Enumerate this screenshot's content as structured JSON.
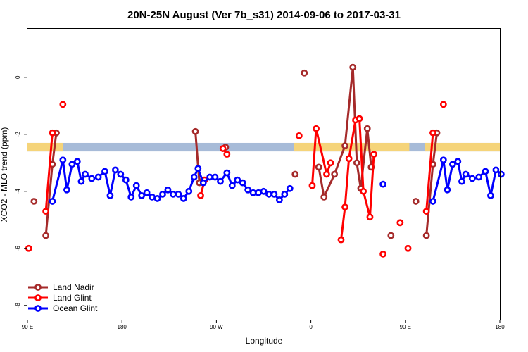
{
  "chart_data": {
    "type": "line",
    "title": "20N-25N August (Ver 7b_s31)   2014-09-06 to 2017-03-31",
    "xlabel": "Longitude",
    "ylabel": "XCO2 - MLO trend (ppm)",
    "xlim": [
      0,
      360
    ],
    "ylim": [
      -8.5,
      1.7
    ],
    "x_ticks": [
      {
        "x": 0,
        "label": "90 E"
      },
      {
        "x": 72,
        "label": "180"
      },
      {
        "x": 144,
        "label": "90 W"
      },
      {
        "x": 216,
        "label": "0"
      },
      {
        "x": 288,
        "label": "90 E"
      },
      {
        "x": 360,
        "label": "180"
      }
    ],
    "y_ticks": [
      {
        "y": 0,
        "label": "0"
      },
      {
        "y": -2,
        "label": "-2"
      },
      {
        "y": -4,
        "label": "-4"
      },
      {
        "y": -6,
        "label": "-6"
      },
      {
        "y": -8,
        "label": "-8"
      }
    ],
    "surface_band": {
      "y_top": -2.3,
      "y_bottom": -2.6,
      "land_color": "#F5D47A",
      "ocean_color": "#A7BBD8",
      "land_segments": [
        [
          0,
          27
        ],
        [
          203,
          291
        ],
        [
          303,
          360
        ]
      ]
    },
    "series": [
      {
        "name": "Land Nadir",
        "color": "#A52A2A",
        "segments": [
          [
            [
              5,
              -4.35
            ]
          ],
          [
            [
              14,
              -5.55
            ],
            [
              19,
              -3.05
            ],
            [
              22,
              -1.95
            ]
          ],
          [
            [
              128,
              -1.9
            ],
            [
              131,
              -3.7
            ],
            [
              134,
              -3.6
            ]
          ],
          [
            [
              151,
              -2.45
            ]
          ],
          [
            [
              204,
              -3.4
            ]
          ],
          [
            [
              211,
              0.15
            ]
          ],
          [
            [
              222,
              -3.15
            ],
            [
              226,
              -4.2
            ],
            [
              234,
              -3.4
            ],
            [
              242,
              -2.4
            ],
            [
              248,
              0.35
            ],
            [
              251,
              -3.0
            ],
            [
              254,
              -3.9
            ],
            [
              259,
              -1.8
            ],
            [
              262,
              -3.15
            ]
          ],
          [
            [
              277,
              -5.55
            ]
          ],
          [
            [
              296,
              -4.35
            ]
          ],
          [
            [
              304,
              -5.55
            ],
            [
              309,
              -3.05
            ],
            [
              312,
              -1.95
            ]
          ]
        ]
      },
      {
        "name": "Land Glint",
        "color": "#FF0000",
        "segments": [
          [
            [
              1,
              -6.0
            ]
          ],
          [
            [
              14,
              -4.7
            ],
            [
              19,
              -1.95
            ]
          ],
          [
            [
              27,
              -0.95
            ]
          ],
          [
            [
              132,
              -4.15
            ],
            [
              135,
              -3.6
            ]
          ],
          [
            [
              149,
              -2.5
            ],
            [
              152,
              -2.7
            ]
          ],
          [
            [
              207,
              -2.05
            ]
          ],
          [
            [
              217,
              -3.8
            ],
            [
              220,
              -1.8
            ],
            [
              228,
              -3.4
            ],
            [
              231,
              -3.0
            ]
          ],
          [
            [
              239,
              -5.7
            ],
            [
              242,
              -4.55
            ],
            [
              245,
              -2.85
            ],
            [
              250,
              -1.5
            ],
            [
              253,
              -1.45
            ],
            [
              256,
              -4.0
            ],
            [
              261,
              -4.9
            ],
            [
              264,
              -2.7
            ]
          ],
          [
            [
              271,
              -6.2
            ]
          ],
          [
            [
              284,
              -5.1
            ]
          ],
          [
            [
              290,
              -6.0
            ]
          ],
          [
            [
              304,
              -4.7
            ],
            [
              309,
              -1.95
            ]
          ],
          [
            [
              317,
              -0.95
            ]
          ]
        ]
      },
      {
        "name": "Ocean Glint",
        "color": "#0000FF",
        "segments": [
          [
            [
              19,
              -4.35
            ],
            [
              27,
              -2.9
            ],
            [
              30,
              -3.95
            ],
            [
              34,
              -3.05
            ],
            [
              38,
              -2.95
            ],
            [
              41,
              -3.65
            ],
            [
              44,
              -3.4
            ],
            [
              49,
              -3.55
            ],
            [
              54,
              -3.5
            ],
            [
              59,
              -3.3
            ],
            [
              63,
              -4.15
            ],
            [
              67,
              -3.25
            ],
            [
              71,
              -3.4
            ],
            [
              75,
              -3.6
            ],
            [
              79,
              -4.2
            ],
            [
              83,
              -3.8
            ],
            [
              87,
              -4.15
            ],
            [
              91,
              -4.05
            ],
            [
              95,
              -4.2
            ],
            [
              99,
              -4.25
            ],
            [
              103,
              -4.1
            ],
            [
              107,
              -3.95
            ],
            [
              111,
              -4.1
            ],
            [
              115,
              -4.1
            ],
            [
              119,
              -4.25
            ],
            [
              123,
              -4.0
            ],
            [
              127,
              -3.5
            ],
            [
              130,
              -3.2
            ],
            [
              134,
              -3.7
            ],
            [
              139,
              -3.5
            ],
            [
              143,
              -3.5
            ],
            [
              147,
              -3.65
            ],
            [
              152,
              -3.35
            ],
            [
              156,
              -3.8
            ],
            [
              160,
              -3.6
            ],
            [
              164,
              -3.7
            ],
            [
              168,
              -3.95
            ],
            [
              172,
              -4.05
            ],
            [
              176,
              -4.05
            ],
            [
              180,
              -4.0
            ],
            [
              184,
              -4.1
            ],
            [
              188,
              -4.1
            ],
            [
              192,
              -4.3
            ],
            [
              196,
              -4.1
            ],
            [
              200,
              -3.9
            ]
          ],
          [
            [
              271,
              -3.75
            ]
          ],
          [
            [
              309,
              -4.35
            ],
            [
              317,
              -2.9
            ],
            [
              320,
              -3.95
            ],
            [
              324,
              -3.05
            ],
            [
              328,
              -2.95
            ],
            [
              331,
              -3.65
            ],
            [
              334,
              -3.4
            ],
            [
              339,
              -3.55
            ],
            [
              344,
              -3.5
            ],
            [
              349,
              -3.3
            ],
            [
              353,
              -4.15
            ],
            [
              357,
              -3.25
            ],
            [
              361,
              -3.4
            ]
          ]
        ]
      }
    ],
    "legend": {
      "position": "bottom-left",
      "entries": [
        "Land Nadir",
        "Land Glint",
        "Ocean Glint"
      ]
    }
  }
}
